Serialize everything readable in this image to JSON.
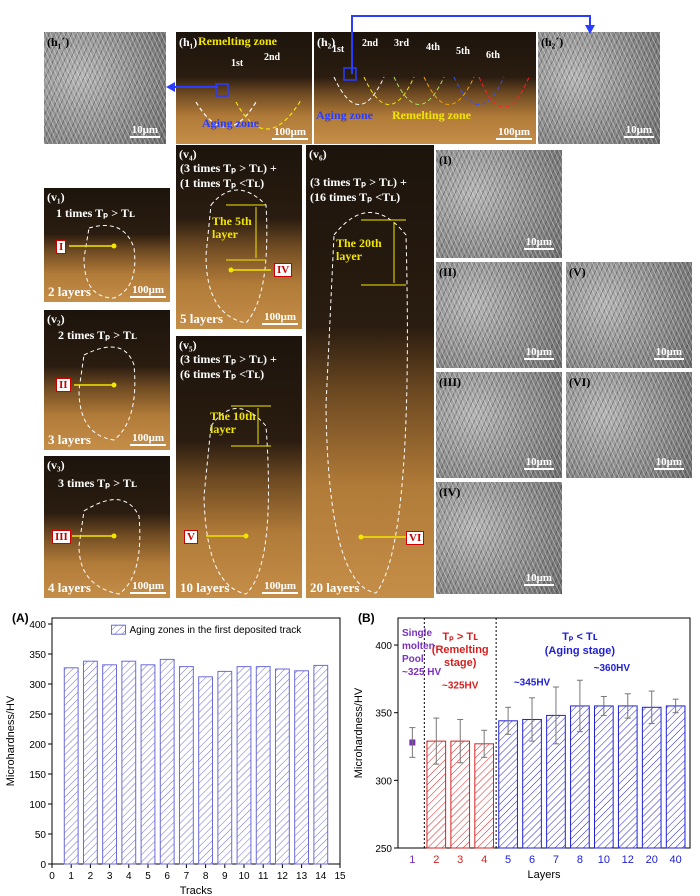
{
  "figure": {
    "h1p": {
      "tag": "(h₁´)",
      "scale": "10μm"
    },
    "h1": {
      "tag": "(h₁)",
      "remelting": "Remelting zone",
      "aging": "Aging zone",
      "ord1": "1st",
      "ord2": "2nd",
      "scale": "100μm"
    },
    "h2": {
      "tag": "(h₂)",
      "ords": [
        "1st",
        "2nd",
        "3rd",
        "4th",
        "5th",
        "6th"
      ],
      "aging": "Aging zone",
      "remelting": "Remelting zone",
      "scale": "100μm"
    },
    "h2p": {
      "tag": "(h₂´)",
      "scale": "10μm"
    },
    "v1": {
      "tag": "(v₁)",
      "cond": "1 times Tₚ > Tʟ",
      "marker": "I",
      "layers": "2 layers",
      "scale": "100μm"
    },
    "v2": {
      "tag": "(v₂)",
      "cond": "2 times Tₚ > Tʟ",
      "marker": "II",
      "layers": "3 layers",
      "scale": "100μm"
    },
    "v3": {
      "tag": "(v₃)",
      "cond": "3 times Tₚ > Tʟ",
      "marker": "III",
      "layers": "4 layers",
      "scale": "100μm"
    },
    "v4": {
      "tag": "(v₄)",
      "cond1": "(3 times Tₚ > Tʟ) +",
      "cond2": "(1 times Tₚ <Tʟ)",
      "layerlabel": "The 5th layer",
      "marker": "IV",
      "layers": "5 layers",
      "scale": "100μm"
    },
    "v5": {
      "tag": "(v₅)",
      "cond1": "(3 times Tₚ > Tʟ) +",
      "cond2": "(6 times Tₚ <Tʟ)",
      "layerlabel": "The 10th layer",
      "marker": "V",
      "layers": "10 layers",
      "scale": "100μm"
    },
    "v6": {
      "tag": "(v₆)",
      "cond1": "(3 times Tₚ > Tʟ) +",
      "cond2": "(16 times Tₚ <Tʟ)",
      "layerlabel": "The 20th layer",
      "marker": "VI",
      "layers": "20 layers",
      "scale": "100μm"
    },
    "micro": [
      {
        "tag": "(I)",
        "scale": "10μm"
      },
      {
        "tag": "(II)",
        "scale": "10μm"
      },
      {
        "tag": "(V)",
        "scale": "10μm"
      },
      {
        "tag": "(III)",
        "scale": "10μm"
      },
      {
        "tag": "(VI)",
        "scale": "10μm"
      },
      {
        "tag": "(IV)",
        "scale": "10μm"
      }
    ]
  },
  "chart_data": [
    {
      "type": "bar",
      "panel_label": "(A)",
      "categories": [
        1,
        2,
        3,
        4,
        5,
        6,
        7,
        8,
        9,
        10,
        11,
        12,
        13,
        14
      ],
      "values": [
        327,
        338,
        332,
        338,
        332,
        341,
        329,
        312,
        321,
        329,
        329,
        325,
        322,
        331
      ],
      "legend": "Aging zones in the first deposited track",
      "legend_position": "top-right",
      "xlabel": "Tracks",
      "ylabel": "Microhardness/HV",
      "xlim": [
        0,
        15
      ],
      "xticks": [
        0,
        1,
        2,
        3,
        4,
        5,
        6,
        7,
        8,
        9,
        10,
        11,
        12,
        13,
        14,
        15
      ],
      "ylim": [
        0,
        410
      ],
      "yticks": [
        0,
        50,
        100,
        150,
        200,
        250,
        300,
        350,
        400
      ],
      "bar_color": "#6b6bd9"
    },
    {
      "type": "bar",
      "panel_label": "(B)",
      "categories": [
        "1",
        "2",
        "3",
        "4",
        "5",
        "6",
        "7",
        "8",
        "10",
        "12",
        "20",
        "40"
      ],
      "values": [
        328,
        329,
        329,
        327,
        344,
        345,
        348,
        355,
        355,
        355,
        354,
        355
      ],
      "errors": [
        11,
        17,
        16,
        10,
        10,
        16,
        21,
        19,
        7,
        9,
        12,
        5
      ],
      "xlabel": "Layers",
      "ylabel": "Microhardness/HV",
      "ylim": [
        250,
        420
      ],
      "yticks": [
        250,
        300,
        350,
        400
      ],
      "groups": [
        {
          "label_lines": [
            "Single",
            "molten",
            "Pool"
          ],
          "value_label": "~325 HV",
          "color": "#7b2fbf",
          "range": [
            0,
            0
          ]
        },
        {
          "label_lines": [
            "Tₚ > Tʟ",
            "(Remelting",
            "stage)"
          ],
          "value_label": "~325HV",
          "color": "#d62020",
          "range": [
            1,
            3
          ]
        },
        {
          "label_lines": [
            "Tₚ < Tʟ",
            "(Aging stage)"
          ],
          "value_label": "~345HV",
          "value_label2": "~360HV",
          "color": "#2020d6",
          "range": [
            4,
            11
          ]
        }
      ]
    }
  ]
}
